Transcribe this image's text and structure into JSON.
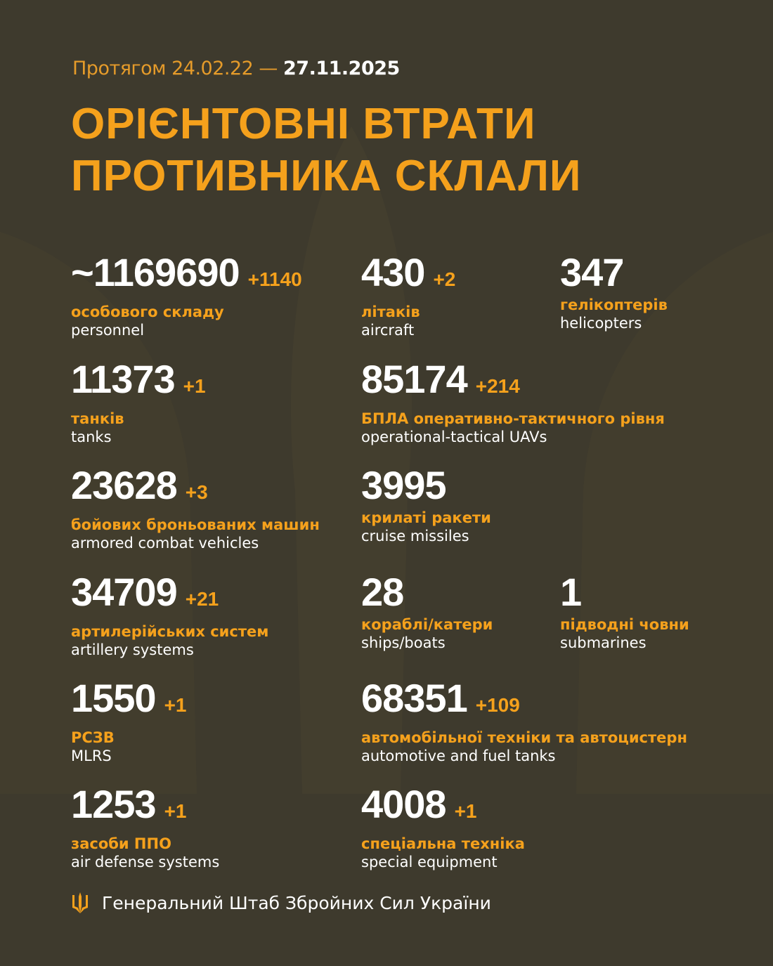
{
  "header": {
    "period_prefix": "Протягом 24.02.22 —",
    "period_end": "27.11.2025",
    "title_line1": "ОРІЄНТОВНІ ВТРАТИ",
    "title_line2": "ПРОТИВНИКА СКЛАЛИ"
  },
  "colors": {
    "background": "#3e3a2d",
    "accent": "#f5a11c",
    "text": "#ffffff"
  },
  "stats": [
    {
      "value": "~1169690",
      "delta": "+1140",
      "ua": "особового складу",
      "en": "personnel"
    },
    {
      "value": "430",
      "delta": "+2",
      "ua": "літаків",
      "en": "aircraft"
    },
    {
      "value": "347",
      "delta": "",
      "ua": "гелікоптерів",
      "en": "helicopters"
    },
    {
      "value": "11373",
      "delta": "+1",
      "ua": "танків",
      "en": "tanks"
    },
    {
      "value": "85174",
      "delta": "+214",
      "ua": "БПЛА оперативно-тактичного рівня",
      "en": "operational-tactical UAVs"
    },
    {
      "value": "23628",
      "delta": "+3",
      "ua": "бойових броньованих машин",
      "en": "armored combat vehicles"
    },
    {
      "value": "3995",
      "delta": "",
      "ua": "крилаті ракети",
      "en": "cruise missiles"
    },
    {
      "value": "34709",
      "delta": "+21",
      "ua": "артилерійських систем",
      "en": "artillery systems"
    },
    {
      "value": "28",
      "delta": "",
      "ua": "кораблі/катери",
      "en": "ships/boats"
    },
    {
      "value": "1",
      "delta": "",
      "ua": "підводні човни",
      "en": "submarines"
    },
    {
      "value": "1550",
      "delta": "+1",
      "ua": "РСЗВ",
      "en": "MLRS"
    },
    {
      "value": "68351",
      "delta": "+109",
      "ua": "автомобільної техніки та автоцистерн",
      "en": "automotive and fuel tanks"
    },
    {
      "value": "1253",
      "delta": "+1",
      "ua": "засоби ППО",
      "en": "air defense systems"
    },
    {
      "value": "4008",
      "delta": "+1",
      "ua": "спеціальна техніка",
      "en": "special equipment"
    }
  ],
  "footer": {
    "icon": "trident-icon",
    "text": "Генеральний Штаб Збройних Сил України"
  }
}
